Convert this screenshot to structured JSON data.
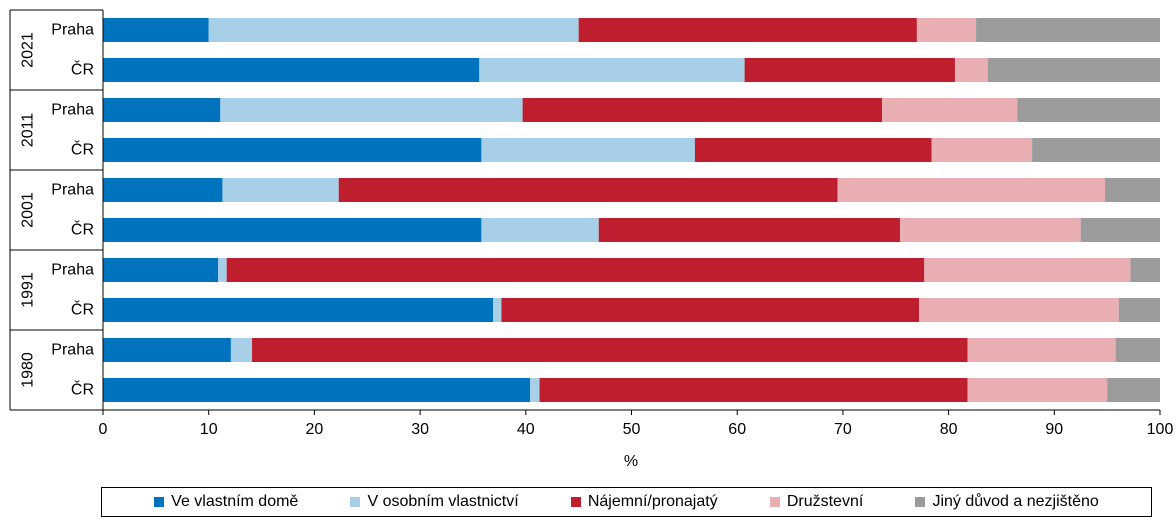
{
  "chart_data": {
    "type": "bar",
    "orientation": "horizontal",
    "stacked": true,
    "xlabel": "%",
    "xlim": [
      0,
      100
    ],
    "xticks": [
      0,
      10,
      20,
      30,
      40,
      50,
      60,
      70,
      80,
      90,
      100
    ],
    "grid": false,
    "legend_position": "bottom",
    "groups": [
      {
        "label": "2021",
        "rows": [
          {
            "label": "Praha",
            "values": [
              10.0,
              35.0,
              32.0,
              5.6,
              17.4
            ]
          },
          {
            "label": "ČR",
            "values": [
              35.6,
              25.1,
              19.9,
              3.1,
              16.3
            ]
          }
        ]
      },
      {
        "label": "2011",
        "rows": [
          {
            "label": "Praha",
            "values": [
              11.1,
              28.6,
              34.0,
              12.8,
              13.5
            ]
          },
          {
            "label": "ČR",
            "values": [
              35.8,
              20.2,
              22.4,
              9.5,
              12.1
            ]
          }
        ]
      },
      {
        "label": "2001",
        "rows": [
          {
            "label": "Praha",
            "values": [
              11.3,
              11.0,
              47.2,
              25.3,
              5.2
            ]
          },
          {
            "label": "ČR",
            "values": [
              35.8,
              11.1,
              28.5,
              17.1,
              7.5
            ]
          }
        ]
      },
      {
        "label": "1991",
        "rows": [
          {
            "label": "Praha",
            "values": [
              10.9,
              0.8,
              66.0,
              19.5,
              2.8
            ]
          },
          {
            "label": "ČR",
            "values": [
              36.9,
              0.8,
              39.5,
              18.9,
              3.9
            ]
          }
        ]
      },
      {
        "label": "1980",
        "rows": [
          {
            "label": "Praha",
            "values": [
              12.1,
              2.0,
              67.7,
              14.0,
              4.2
            ]
          },
          {
            "label": "ČR",
            "values": [
              40.4,
              0.9,
              40.5,
              13.2,
              5.0
            ]
          }
        ]
      }
    ],
    "series": [
      {
        "name": "Ve vlastním domě",
        "color": "#0073bf"
      },
      {
        "name": "V osobním vlastnictví",
        "color": "#a7cfe8"
      },
      {
        "name": "Nájemní/pronajatý",
        "color": "#be1e2d"
      },
      {
        "name": "Družstevní",
        "color": "#e8aeb2"
      },
      {
        "name": "Jiný důvod a nezjištěno",
        "color": "#9b9b9b"
      }
    ]
  }
}
